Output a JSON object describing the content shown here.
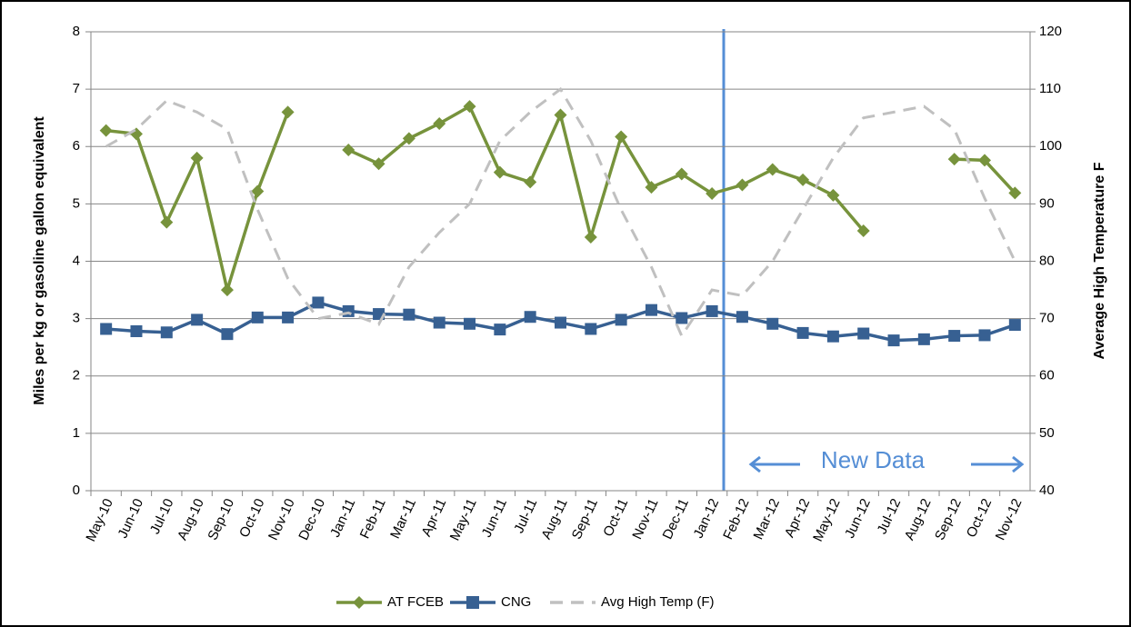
{
  "chart_data": {
    "type": "line",
    "categories": [
      "May-10",
      "Jun-10",
      "Jul-10",
      "Aug-10",
      "Sep-10",
      "Oct-10",
      "Nov-10",
      "Dec-10",
      "Jan-11",
      "Feb-11",
      "Mar-11",
      "Apr-11",
      "May-11",
      "Jun-11",
      "Jul-11",
      "Aug-11",
      "Sep-11",
      "Oct-11",
      "Nov-11",
      "Dec-11",
      "Jan-12",
      "Feb-12",
      "Mar-12",
      "Apr-12",
      "May-12",
      "Jun-12",
      "Jul-12",
      "Aug-12",
      "Sep-12",
      "Oct-12",
      "Nov-12"
    ],
    "series": [
      {
        "name": "AT FCEB",
        "color": "#77933c",
        "marker": "diamond",
        "values": [
          6.28,
          6.22,
          4.68,
          5.8,
          3.5,
          5.22,
          6.6,
          null,
          5.94,
          5.7,
          6.14,
          6.4,
          6.7,
          5.55,
          5.38,
          6.55,
          4.42,
          6.17,
          5.29,
          5.52,
          5.18,
          5.33,
          5.6,
          5.42,
          5.15,
          4.53,
          null,
          null,
          5.78,
          5.76,
          5.19
        ]
      },
      {
        "name": "CNG",
        "color": "#376092",
        "marker": "square",
        "values": [
          2.82,
          2.78,
          2.76,
          2.98,
          2.73,
          3.02,
          3.02,
          3.28,
          3.13,
          3.08,
          3.07,
          2.93,
          2.91,
          2.81,
          3.03,
          2.93,
          2.82,
          2.98,
          3.15,
          3.01,
          3.13,
          3.03,
          2.91,
          2.75,
          2.69,
          2.74,
          2.62,
          2.64,
          2.7,
          2.71,
          2.89
        ]
      },
      {
        "name": "Avg High Temp (F)",
        "color": "#c0c0c0",
        "dashed": true,
        "axis": "y2",
        "values": [
          100,
          103,
          108,
          106,
          103,
          89,
          77,
          70,
          71,
          69,
          79,
          85,
          90,
          101,
          106,
          110,
          101,
          89,
          79,
          67,
          75,
          74,
          80,
          89,
          98,
          105,
          106,
          107,
          103,
          91,
          80
        ]
      }
    ],
    "ylabel": "Miles per kg or gasoline gallon equivalent",
    "y2label": "Average High Temperature F",
    "ylim": [
      0,
      8
    ],
    "yticks": [
      0,
      1,
      2,
      3,
      4,
      5,
      6,
      7,
      8
    ],
    "y2lim": [
      40,
      120
    ],
    "y2ticks": [
      40,
      50,
      60,
      70,
      80,
      90,
      100,
      110,
      120
    ],
    "grid": true,
    "legend": "bottom",
    "annotation": "New Data"
  }
}
